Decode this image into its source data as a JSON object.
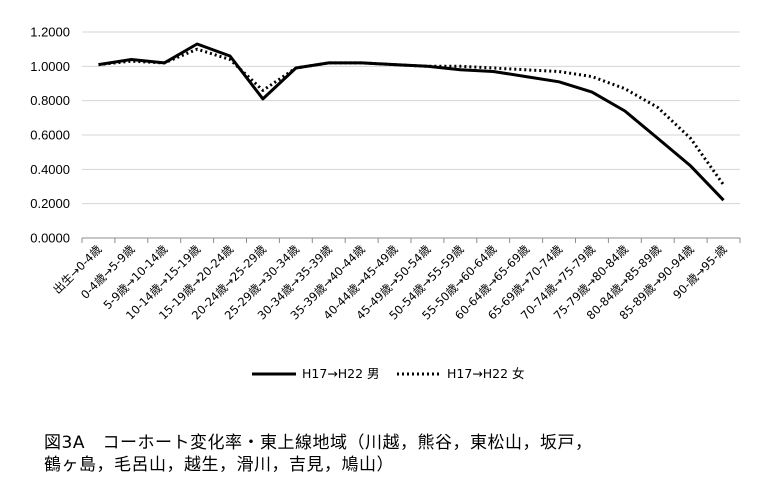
{
  "caption": {
    "line1": "図3A　コーホート変化率・東上線地域（川越，熊谷，東松山，坂戸，",
    "line2": "鶴ヶ島，毛呂山，越生，滑川，吉見，鳩山）"
  },
  "chart_data": {
    "type": "line",
    "title": "",
    "xlabel": "",
    "ylabel": "",
    "ylim": [
      0,
      1.2
    ],
    "yticks": [
      "0.0000",
      "0.2000",
      "0.4000",
      "0.6000",
      "0.8000",
      "1.0000",
      "1.2000"
    ],
    "grid": true,
    "legend_position": "bottom",
    "categories": [
      "出生→0-4歳",
      "0-4歳→5-9歳",
      "5-9歳→10-14歳",
      "10-14歳→15-19歳",
      "15-19歳→20-24歳",
      "20-24歳→25-29歳",
      "25-29歳→30-34歳",
      "30-34歳→35-39歳",
      "35-39歳→40-44歳",
      "40-44歳→45-49歳",
      "45-49歳→50-54歳",
      "50-54歳→55-59歳",
      "55-50歳→60-64歳",
      "60-64歳→65-69歳",
      "65-69歳→70-74歳",
      "70-74歳→75-79歳",
      "75-79歳→80-84歳",
      "80-84歳→85-89歳",
      "85-89歳→90-94歳",
      "90-歳→95-歳"
    ],
    "series": [
      {
        "name": "H17→H22 男",
        "style": "solid",
        "color": "#000000",
        "values": [
          1.01,
          1.04,
          1.02,
          1.13,
          1.06,
          0.81,
          0.99,
          1.02,
          1.02,
          1.01,
          1.0,
          0.98,
          0.97,
          0.94,
          0.91,
          0.85,
          0.74,
          0.58,
          0.42,
          0.22
        ]
      },
      {
        "name": "H17→H22 女",
        "style": "dotted",
        "color": "#000000",
        "values": [
          1.01,
          1.03,
          1.02,
          1.1,
          1.04,
          0.86,
          0.99,
          1.02,
          1.02,
          1.01,
          1.0,
          1.0,
          0.99,
          0.98,
          0.97,
          0.94,
          0.87,
          0.76,
          0.58,
          0.31
        ]
      }
    ]
  }
}
